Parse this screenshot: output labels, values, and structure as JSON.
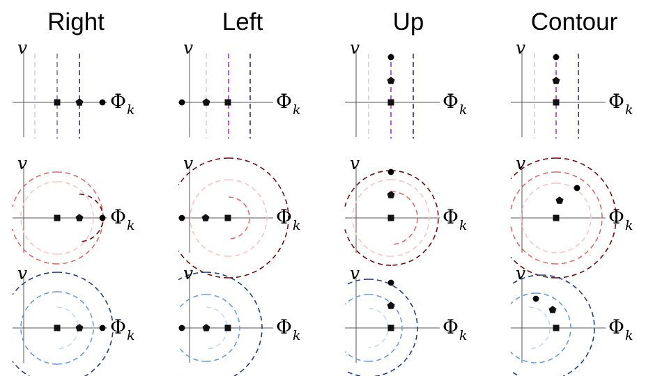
{
  "columns": [
    "Right",
    "Left",
    "Up",
    "Contour"
  ],
  "axis_labels": {
    "y": "v",
    "x_main": "Φ",
    "x_sub": "k"
  },
  "palettes": {
    "purple": [
      "#cfcfe3",
      "#7f74ad",
      "#3a2a70",
      "#9b30ff"
    ],
    "red": [
      "#f6c6c6",
      "#de6b66",
      "#6b0c0c"
    ],
    "blue": [
      "#c6d8f0",
      "#6a9bd4",
      "#213f78"
    ]
  },
  "panel_styles": [
    [
      "lines",
      "lines",
      "lines",
      "lines"
    ],
    [
      "arcs",
      "arcs",
      "arcs",
      "arcs"
    ],
    [
      "arcs",
      "arcs",
      "arcs",
      "arcs"
    ]
  ],
  "row_palettes": [
    "purple",
    "red",
    "blue"
  ]
}
